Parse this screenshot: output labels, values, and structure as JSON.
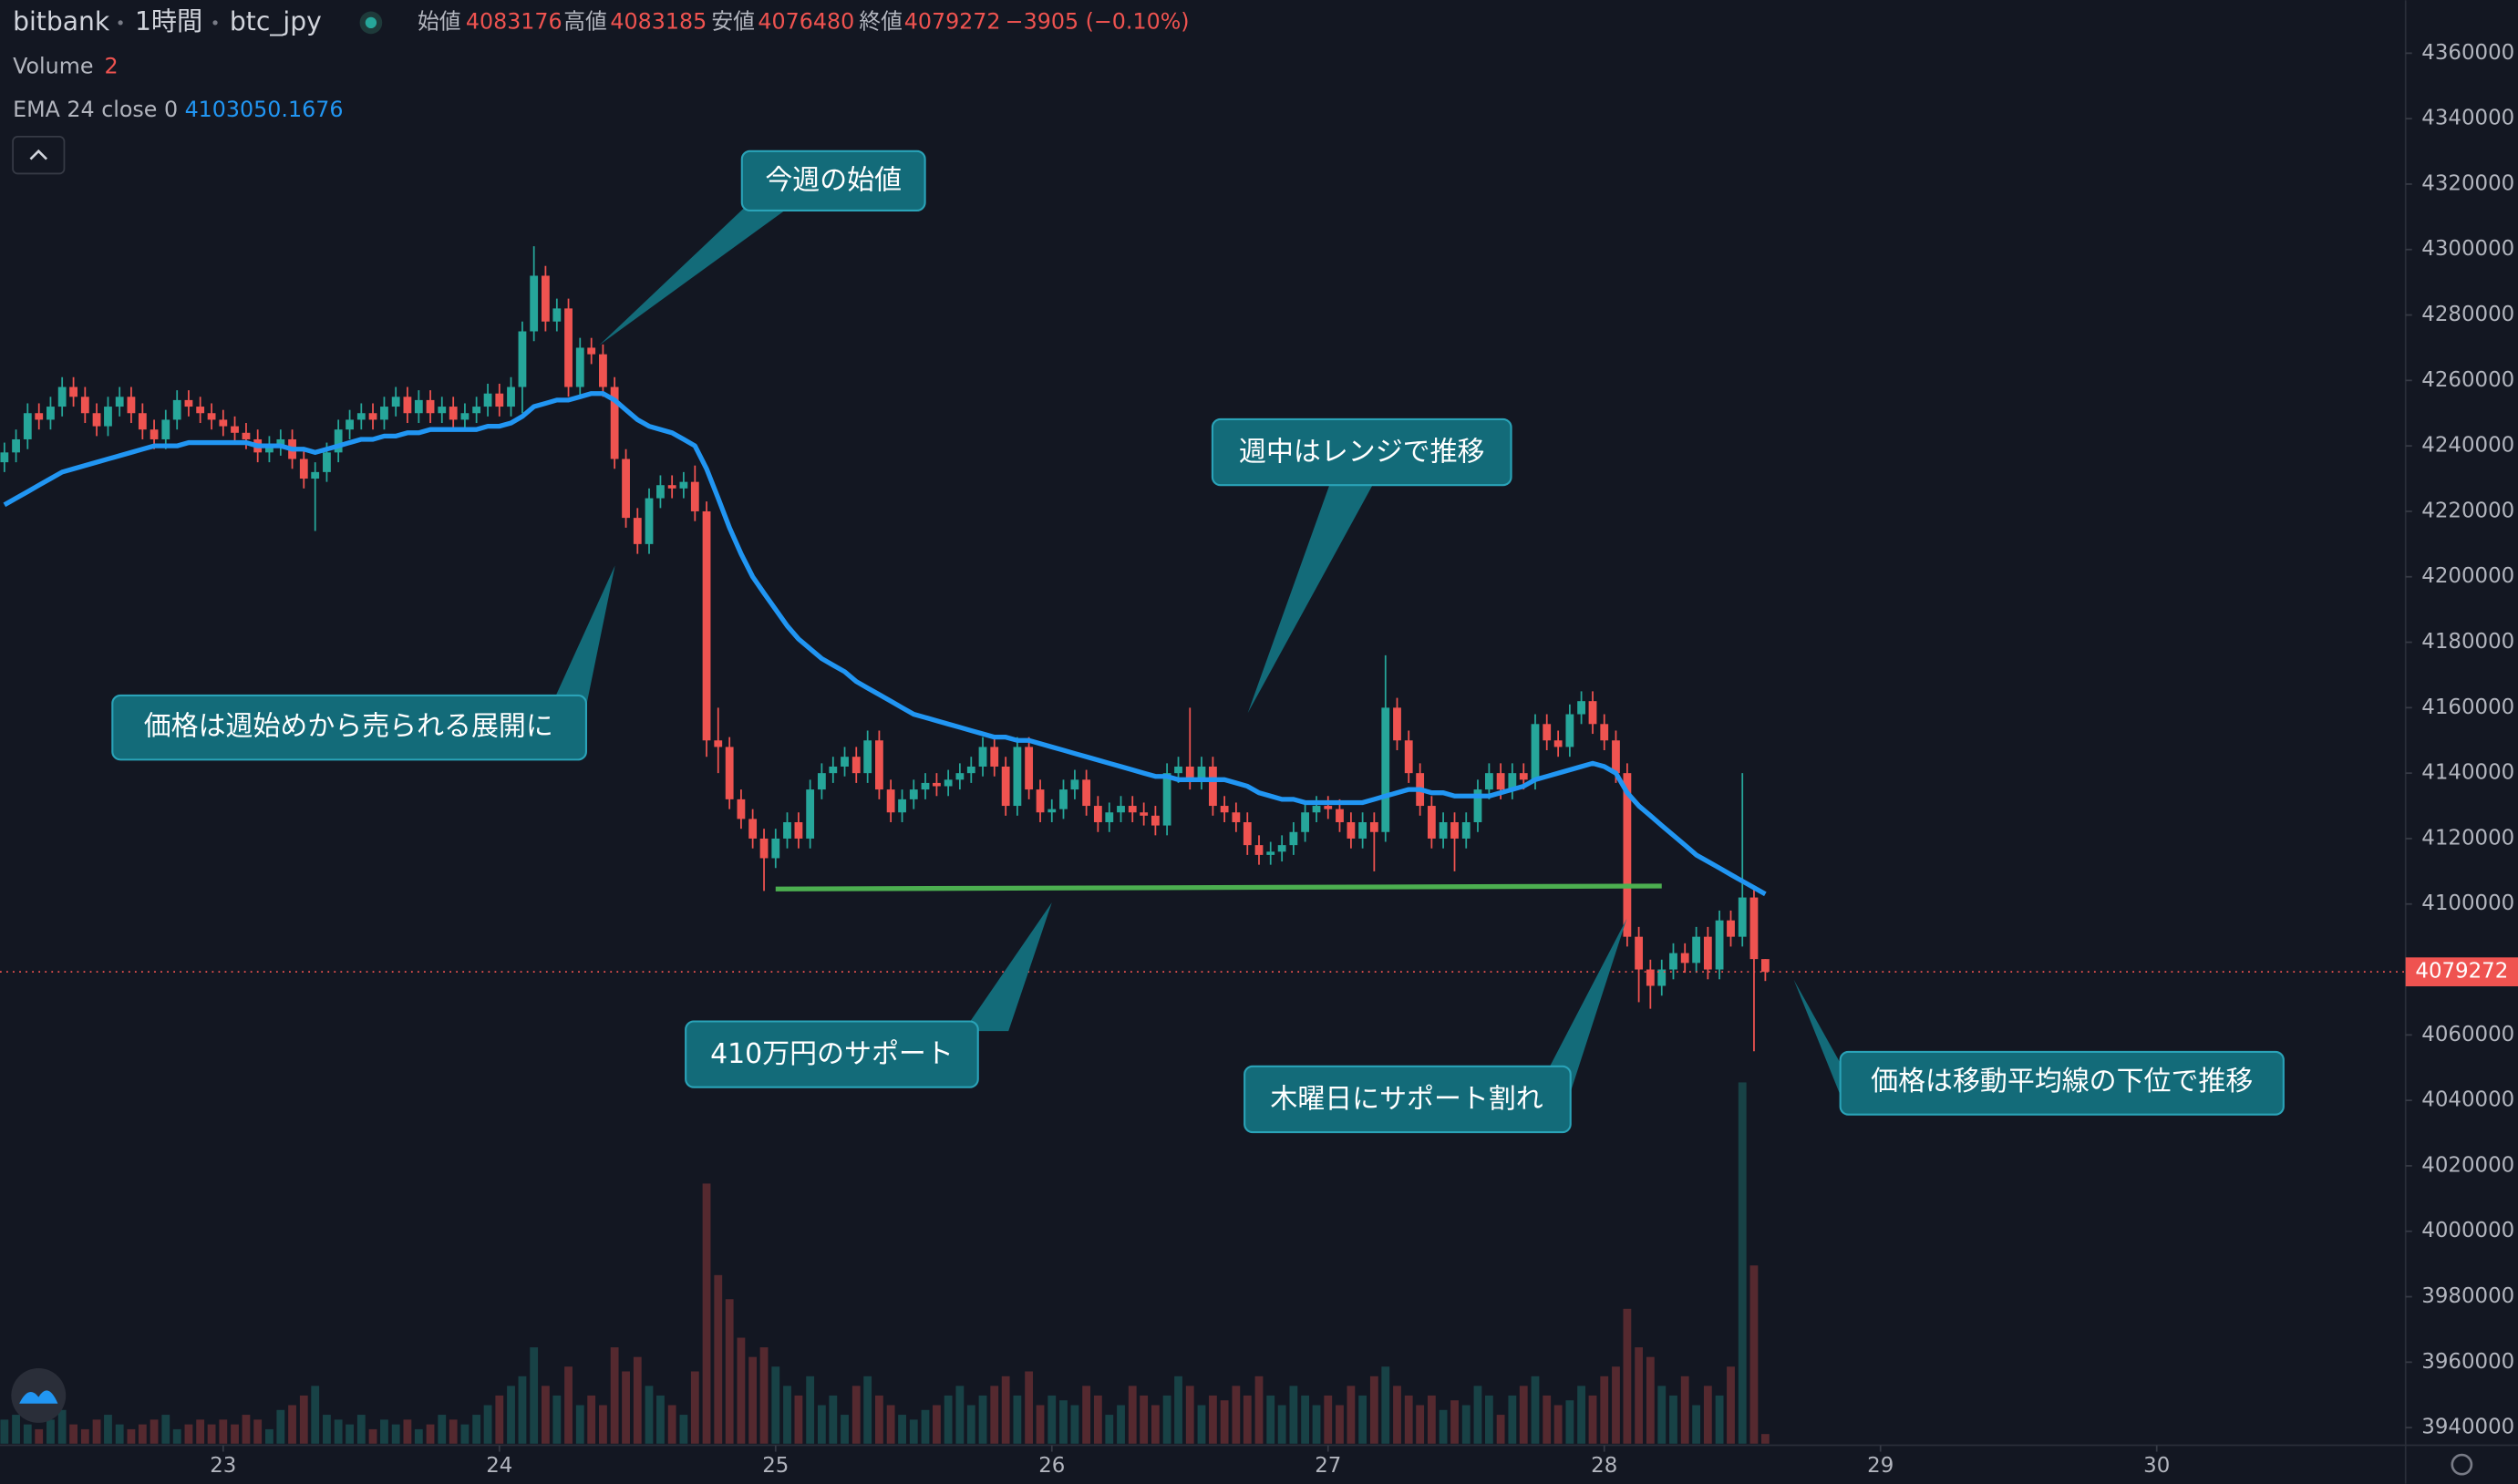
{
  "header": {
    "exchange": "bitbank",
    "interval": "1時間",
    "symbol": "btc_jpy",
    "open_label": "始値",
    "high_label": "高値",
    "low_label": "安値",
    "close_label": "終値",
    "change": "−3905 (−0.10%)",
    "volume_label": "Volume",
    "ema_label": "EMA 24 close 0"
  },
  "chart_data": {
    "type": "candlestick",
    "x": [
      22.208,
      22.25,
      22.292,
      22.333,
      22.375,
      22.417,
      22.458,
      22.5,
      22.542,
      22.583,
      22.625,
      22.667,
      22.708,
      22.75,
      22.792,
      22.833,
      22.875,
      22.917,
      22.958,
      23,
      23.042,
      23.083,
      23.125,
      23.167,
      23.208,
      23.25,
      23.292,
      23.333,
      23.375,
      23.417,
      23.458,
      23.5,
      23.542,
      23.583,
      23.625,
      23.667,
      23.708,
      23.75,
      23.792,
      23.833,
      23.875,
      23.917,
      23.958,
      24,
      24.042,
      24.083,
      24.125,
      24.167,
      24.208,
      24.25,
      24.292,
      24.333,
      24.375,
      24.417,
      24.458,
      24.5,
      24.542,
      24.583,
      24.625,
      24.667,
      24.708,
      24.75,
      24.792,
      24.833,
      24.875,
      24.917,
      24.958,
      25,
      25.042,
      25.083,
      25.125,
      25.167,
      25.208,
      25.25,
      25.292,
      25.333,
      25.375,
      25.417,
      25.458,
      25.5,
      25.542,
      25.583,
      25.625,
      25.667,
      25.708,
      25.75,
      25.792,
      25.833,
      25.875,
      25.917,
      25.958,
      26,
      26.042,
      26.083,
      26.125,
      26.167,
      26.208,
      26.25,
      26.292,
      26.333,
      26.375,
      26.417,
      26.458,
      26.5,
      26.542,
      26.583,
      26.625,
      26.667,
      26.708,
      26.75,
      26.792,
      26.833,
      26.875,
      26.917,
      26.958,
      27,
      27.042,
      27.083,
      27.125,
      27.167,
      27.208,
      27.25,
      27.292,
      27.333,
      27.375,
      27.417,
      27.458,
      27.5,
      27.542,
      27.583,
      27.625,
      27.667,
      27.708,
      27.75,
      27.792,
      27.833,
      27.875,
      27.917,
      27.958,
      28,
      28.042,
      28.083,
      28.125,
      28.167,
      28.208,
      28.25,
      28.292,
      28.333,
      28.375,
      28.417,
      28.458,
      28.5,
      28.542,
      28.583
    ],
    "open": [
      4235000,
      4238000,
      4242000,
      4250000,
      4248000,
      4252000,
      4258000,
      4255000,
      4250000,
      4246000,
      4252000,
      4255000,
      4250000,
      4245000,
      4242000,
      4248000,
      4254000,
      4252000,
      4250000,
      4248000,
      4246000,
      4244000,
      4242000,
      4238000,
      4240000,
      4242000,
      4236000,
      4230000,
      4232000,
      4238000,
      4245000,
      4248000,
      4250000,
      4248000,
      4252000,
      4255000,
      4250000,
      4254000,
      4250000,
      4252000,
      4248000,
      4250000,
      4252000,
      4256000,
      4252000,
      4258000,
      4275000,
      4292000,
      4278000,
      4282000,
      4258000,
      4270000,
      4268000,
      4258000,
      4236000,
      4218000,
      4210000,
      4224000,
      4228000,
      4227000,
      4229000,
      4220000,
      4150000,
      4148000,
      4132000,
      4126000,
      4120000,
      4114000,
      4120000,
      4125000,
      4120000,
      4135000,
      4140000,
      4142000,
      4145000,
      4140000,
      4150000,
      4135000,
      4128000,
      4132000,
      4135000,
      4137000,
      4136000,
      4138000,
      4140000,
      4142000,
      4148000,
      4142000,
      4130000,
      4148000,
      4135000,
      4128000,
      4129000,
      4135000,
      4138000,
      4130000,
      4125000,
      4128000,
      4130000,
      4128000,
      4127000,
      4124000,
      4140000,
      4142000,
      4138000,
      4142000,
      4130000,
      4128000,
      4125000,
      4118000,
      4115000,
      4116000,
      4118000,
      4122000,
      4128000,
      4130000,
      4129000,
      4125000,
      4120000,
      4125000,
      4122000,
      4160000,
      4150000,
      4140000,
      4130000,
      4120000,
      4125000,
      4120000,
      4125000,
      4135000,
      4140000,
      4135000,
      4140000,
      4138000,
      4155000,
      4150000,
      4148000,
      4158000,
      4162000,
      4155000,
      4150000,
      4140000,
      4090000,
      4080000,
      4075000,
      4080000,
      4085000,
      4082000,
      4090000,
      4080000,
      4095000,
      4090000,
      4102000,
      4083176
    ],
    "high": [
      4241000,
      4245000,
      4253000,
      4253000,
      4255000,
      4261000,
      4261000,
      4258000,
      4253000,
      4255000,
      4258000,
      4258000,
      4253000,
      4248000,
      4251000,
      4257000,
      4257000,
      4255000,
      4253000,
      4251000,
      4249000,
      4247000,
      4245000,
      4243000,
      4245000,
      4245000,
      4239000,
      4235000,
      4241000,
      4248000,
      4251000,
      4253000,
      4253000,
      4255000,
      4258000,
      4258000,
      4257000,
      4257000,
      4255000,
      4255000,
      4253000,
      4255000,
      4259000,
      4259000,
      4261000,
      4278000,
      4301000,
      4295000,
      4285000,
      4285000,
      4273000,
      4273000,
      4271000,
      4261000,
      4239000,
      4221000,
      4227000,
      4231000,
      4231000,
      4232000,
      4234000,
      4223000,
      4160000,
      4151000,
      4135000,
      4129000,
      4123000,
      4123000,
      4128000,
      4128000,
      4138000,
      4143000,
      4145000,
      4148000,
      4148000,
      4153000,
      4153000,
      4138000,
      4135000,
      4138000,
      4140000,
      4140000,
      4141000,
      4143000,
      4145000,
      4151000,
      4151000,
      4145000,
      4151000,
      4151000,
      4138000,
      4132000,
      4138000,
      4141000,
      4141000,
      4133000,
      4131000,
      4133000,
      4133000,
      4131000,
      4130000,
      4143000,
      4145000,
      4160000,
      4145000,
      4145000,
      4133000,
      4131000,
      4128000,
      4121000,
      4119000,
      4121000,
      4125000,
      4131000,
      4133000,
      4133000,
      4132000,
      4128000,
      4128000,
      4128000,
      4176000,
      4163000,
      4153000,
      4143000,
      4133000,
      4128000,
      4128000,
      4128000,
      4138000,
      4143000,
      4143000,
      4143000,
      4143000,
      4158000,
      4158000,
      4153000,
      4161000,
      4165000,
      4165000,
      4158000,
      4153000,
      4143000,
      4093000,
      4083000,
      4083000,
      4088000,
      4088000,
      4093000,
      4093000,
      4098000,
      4098000,
      4140000,
      4105000,
      4083185
    ],
    "low": [
      4232000,
      4235000,
      4239000,
      4245000,
      4245000,
      4249000,
      4252000,
      4247000,
      4243000,
      4243000,
      4249000,
      4247000,
      4242000,
      4239000,
      4239000,
      4245000,
      4249000,
      4247000,
      4245000,
      4243000,
      4241000,
      4239000,
      4235000,
      4235000,
      4237000,
      4233000,
      4227000,
      4214000,
      4229000,
      4235000,
      4242000,
      4245000,
      4245000,
      4245000,
      4249000,
      4247000,
      4247000,
      4247000,
      4247000,
      4245000,
      4245000,
      4247000,
      4249000,
      4249000,
      4249000,
      4250000,
      4272000,
      4275000,
      4275000,
      4255000,
      4255000,
      4265000,
      4255000,
      4233000,
      4215000,
      4207000,
      4207000,
      4221000,
      4224000,
      4224000,
      4217000,
      4145000,
      4140000,
      4129000,
      4123000,
      4117000,
      4104000,
      4111000,
      4117000,
      4117000,
      4117000,
      4132000,
      4137000,
      4139000,
      4137000,
      4137000,
      4132000,
      4125000,
      4125000,
      4129000,
      4132000,
      4133000,
      4133000,
      4135000,
      4137000,
      4139000,
      4139000,
      4127000,
      4127000,
      4132000,
      4125000,
      4125000,
      4126000,
      4132000,
      4127000,
      4122000,
      4122000,
      4125000,
      4125000,
      4124000,
      4121000,
      4121000,
      4137000,
      4135000,
      4135000,
      4127000,
      4125000,
      4122000,
      4115000,
      4112000,
      4112000,
      4113000,
      4115000,
      4119000,
      4125000,
      4126000,
      4122000,
      4117000,
      4117000,
      4110000,
      4119000,
      4147000,
      4137000,
      4127000,
      4117000,
      4117000,
      4110000,
      4117000,
      4122000,
      4132000,
      4132000,
      4132000,
      4135000,
      4135000,
      4147000,
      4145000,
      4145000,
      4155000,
      4152000,
      4147000,
      4137000,
      4087000,
      4070000,
      4068000,
      4072000,
      4077000,
      4079000,
      4079000,
      4077000,
      4077000,
      4087000,
      4087000,
      4055000,
      4076480
    ],
    "close": [
      4238000,
      4242000,
      4250000,
      4248000,
      4252000,
      4258000,
      4255000,
      4250000,
      4246000,
      4252000,
      4255000,
      4250000,
      4245000,
      4242000,
      4248000,
      4254000,
      4252000,
      4250000,
      4248000,
      4246000,
      4244000,
      4242000,
      4238000,
      4240000,
      4242000,
      4236000,
      4230000,
      4232000,
      4238000,
      4245000,
      4248000,
      4250000,
      4248000,
      4252000,
      4255000,
      4250000,
      4254000,
      4250000,
      4252000,
      4248000,
      4250000,
      4252000,
      4256000,
      4252000,
      4258000,
      4275000,
      4292000,
      4278000,
      4282000,
      4258000,
      4270000,
      4268000,
      4258000,
      4236000,
      4218000,
      4210000,
      4224000,
      4228000,
      4227000,
      4229000,
      4220000,
      4150000,
      4148000,
      4132000,
      4126000,
      4120000,
      4114000,
      4120000,
      4125000,
      4120000,
      4135000,
      4140000,
      4142000,
      4145000,
      4140000,
      4150000,
      4135000,
      4128000,
      4132000,
      4135000,
      4137000,
      4136000,
      4138000,
      4140000,
      4142000,
      4148000,
      4142000,
      4130000,
      4148000,
      4135000,
      4128000,
      4129000,
      4135000,
      4138000,
      4130000,
      4125000,
      4128000,
      4130000,
      4128000,
      4127000,
      4124000,
      4140000,
      4142000,
      4138000,
      4142000,
      4130000,
      4128000,
      4125000,
      4118000,
      4115000,
      4116000,
      4118000,
      4122000,
      4128000,
      4130000,
      4129000,
      4125000,
      4120000,
      4125000,
      4122000,
      4160000,
      4150000,
      4140000,
      4130000,
      4120000,
      4125000,
      4120000,
      4125000,
      4135000,
      4140000,
      4135000,
      4140000,
      4138000,
      4155000,
      4150000,
      4148000,
      4158000,
      4162000,
      4155000,
      4150000,
      4140000,
      4090000,
      4080000,
      4075000,
      4080000,
      4085000,
      4082000,
      4090000,
      4080000,
      4095000,
      4090000,
      4102000,
      4083176,
      4079272
    ],
    "volume": [
      5,
      6,
      4,
      3,
      5,
      7,
      4,
      3,
      5,
      6,
      4,
      3,
      4,
      5,
      6,
      3,
      4,
      5,
      4,
      5,
      4,
      6,
      5,
      3,
      7,
      8,
      10,
      12,
      6,
      5,
      4,
      6,
      3,
      5,
      4,
      5,
      3,
      4,
      6,
      5,
      4,
      6,
      8,
      10,
      12,
      14,
      20,
      12,
      10,
      16,
      8,
      10,
      8,
      20,
      15,
      18,
      12,
      10,
      8,
      6,
      15,
      54,
      35,
      30,
      22,
      18,
      20,
      16,
      12,
      10,
      14,
      8,
      10,
      6,
      12,
      14,
      10,
      8,
      6,
      5,
      7,
      8,
      10,
      12,
      8,
      10,
      12,
      14,
      10,
      15,
      8,
      10,
      9,
      8,
      12,
      10,
      6,
      8,
      12,
      10,
      8,
      10,
      14,
      12,
      8,
      10,
      9,
      12,
      10,
      14,
      10,
      8,
      12,
      10,
      8,
      10,
      8,
      12,
      10,
      14,
      16,
      12,
      10,
      8,
      10,
      7,
      9,
      8,
      12,
      10,
      6,
      10,
      12,
      14,
      10,
      8,
      9,
      12,
      10,
      14,
      16,
      28,
      20,
      18,
      12,
      10,
      14,
      8,
      12,
      10,
      16,
      75,
      37,
      2
    ],
    "up_color": "#26a69a",
    "down_color": "#ef5350",
    "ema": {
      "color": "#2196f3",
      "values": [
        4222000,
        4224000,
        4226000,
        4228000,
        4230000,
        4232000,
        4233000,
        4234000,
        4235000,
        4236000,
        4237000,
        4238000,
        4239000,
        4240000,
        4240000,
        4240000,
        4241000,
        4241000,
        4241000,
        4241000,
        4241000,
        4241000,
        4240000,
        4240000,
        4240000,
        4239000,
        4239000,
        4238000,
        4239000,
        4240000,
        4241000,
        4242000,
        4242000,
        4243000,
        4243000,
        4244000,
        4244000,
        4245000,
        4245000,
        4245000,
        4245000,
        4245000,
        4246000,
        4246000,
        4247000,
        4249000,
        4252000,
        4253000,
        4254000,
        4254000,
        4255000,
        4256000,
        4256000,
        4254000,
        4251000,
        4248000,
        4246000,
        4245000,
        4244000,
        4242000,
        4240000,
        4233000,
        4224000,
        4215000,
        4207000,
        4200000,
        4195000,
        4190000,
        4185000,
        4181000,
        4178000,
        4175000,
        4173000,
        4171000,
        4168000,
        4166000,
        4164000,
        4162000,
        4160000,
        4158000,
        4157000,
        4156000,
        4155000,
        4154000,
        4153000,
        4152000,
        4151000,
        4151000,
        4150000,
        4150000,
        4149000,
        4148000,
        4147000,
        4146000,
        4145000,
        4144000,
        4143000,
        4142000,
        4141000,
        4140000,
        4139000,
        4139000,
        4138000,
        4138000,
        4138000,
        4138000,
        4138000,
        4137000,
        4136000,
        4134000,
        4133000,
        4132000,
        4132000,
        4131000,
        4131000,
        4131000,
        4131000,
        4131000,
        4131000,
        4132000,
        4133000,
        4134000,
        4135000,
        4135000,
        4134000,
        4134000,
        4133000,
        4133000,
        4133000,
        4133000,
        4134000,
        4135000,
        4136000,
        4138000,
        4139000,
        4140000,
        4141000,
        4142000,
        4143000,
        4142000,
        4140000,
        4134000,
        4130000,
        4127000,
        4124000,
        4121000,
        4118000,
        4115000,
        4113000,
        4111000,
        4109000,
        4107000,
        4105000,
        4103050.1676
      ]
    },
    "support": {
      "color": "#4caf50",
      "x": [
        25.0,
        28.208
      ],
      "y": [
        4104600,
        4105500
      ]
    },
    "annotations": [
      "今週の始値",
      "価格は週始めから売られる展開に",
      "週中はレンジで推移",
      "410万円のサポート",
      "木曜日にサポート割れ",
      "価格は移動平均線の下位で推移"
    ],
    "xlim": [
      22.192,
      30.901
    ],
    "xticks": [
      23,
      24,
      25,
      26,
      27,
      28,
      29,
      30
    ],
    "ylim": [
      3934600,
      4376200
    ],
    "yticks": [
      3940000,
      3960000,
      3980000,
      4000000,
      4020000,
      4040000,
      4060000,
      4080000,
      4100000,
      4120000,
      4140000,
      4160000,
      4180000,
      4200000,
      4220000,
      4240000,
      4260000,
      4280000,
      4300000,
      4320000,
      4340000,
      4360000
    ],
    "volume_ylim": [
      0,
      100
    ]
  }
}
